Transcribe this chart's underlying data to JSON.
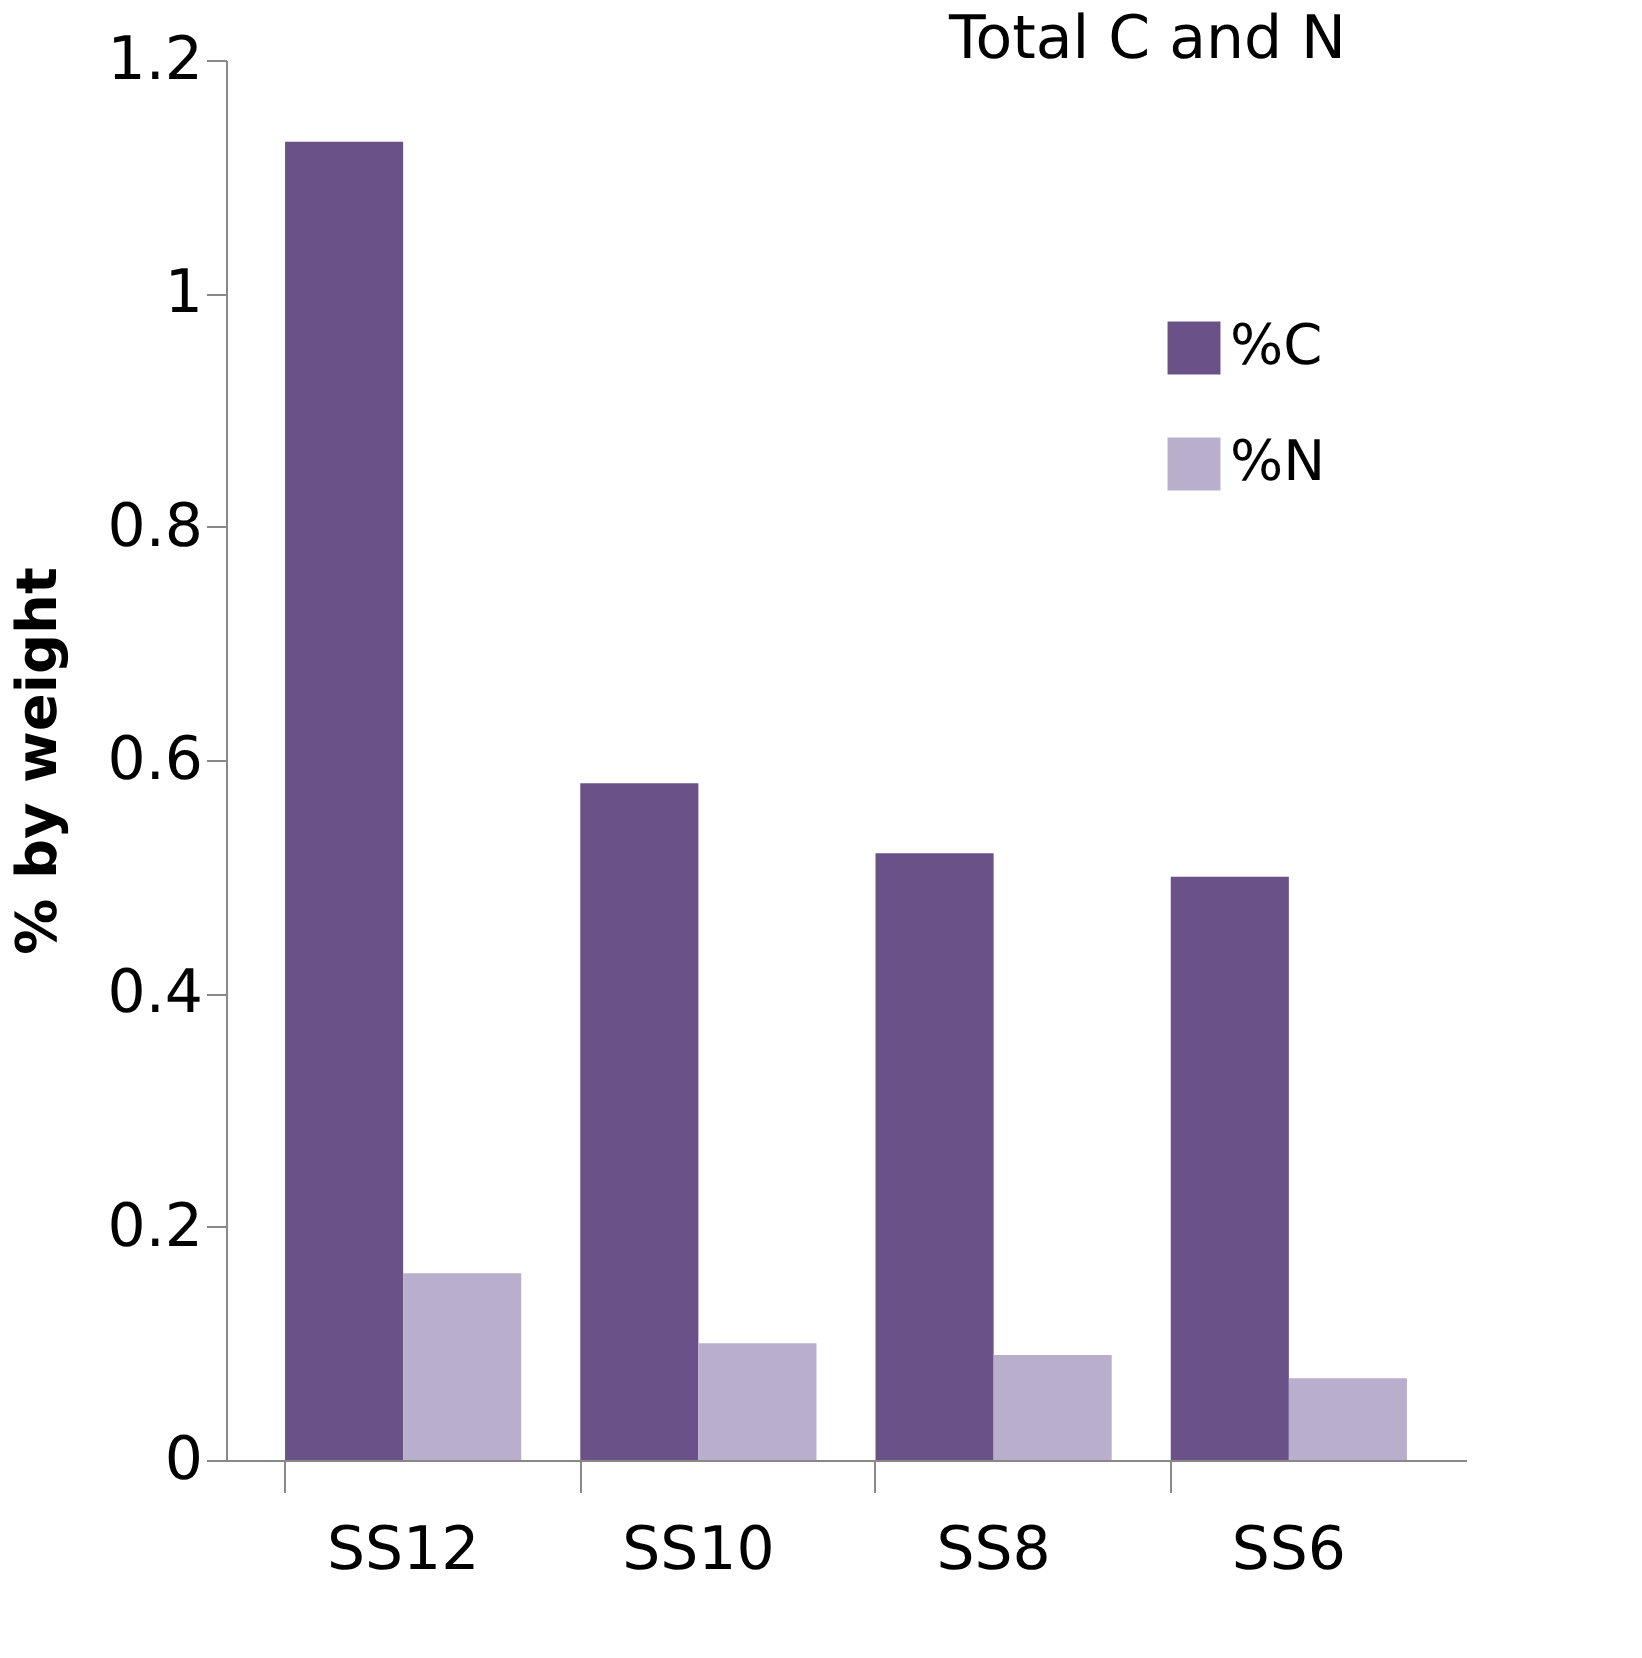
{
  "chart_data": {
    "type": "bar",
    "title": "Total C and N",
    "ylabel": "% by weight",
    "categories": [
      "SS12",
      "SS10",
      "SS8",
      "SS6"
    ],
    "series": [
      {
        "name": "%C",
        "color": "#6a5288",
        "values": [
          1.13,
          0.58,
          0.52,
          0.5
        ]
      },
      {
        "name": "%N",
        "color": "#b9aecb",
        "values": [
          0.16,
          0.1,
          0.09,
          0.07
        ]
      }
    ],
    "ylim": [
      0,
      1.2
    ],
    "yticks": [
      0,
      0.2,
      0.4,
      0.6,
      0.8,
      1,
      1.2
    ],
    "grid": false,
    "legend": "top right"
  }
}
